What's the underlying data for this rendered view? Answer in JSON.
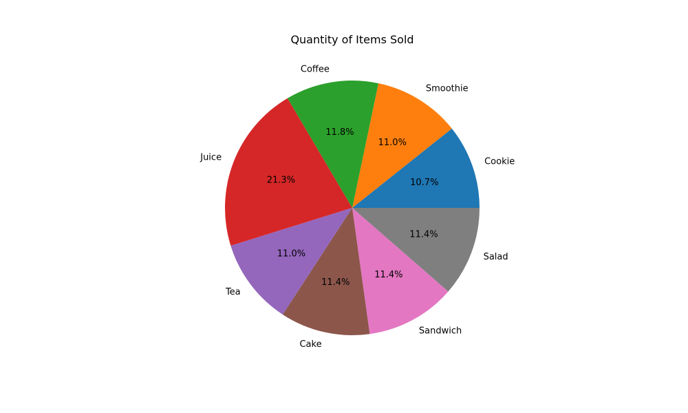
{
  "chart_data": {
    "type": "pie",
    "title": "Quantity of Items Sold",
    "start_angle_deg": 0,
    "direction": "counterclockwise",
    "slices": [
      {
        "label": "Cookie",
        "percent": 10.7,
        "pct_text": "10.7%",
        "color": "#1f77b4"
      },
      {
        "label": "Smoothie",
        "percent": 11.0,
        "pct_text": "11.0%",
        "color": "#ff7f0e"
      },
      {
        "label": "Coffee",
        "percent": 11.8,
        "pct_text": "11.8%",
        "color": "#2ca02c"
      },
      {
        "label": "Juice",
        "percent": 21.3,
        "pct_text": "21.3%",
        "color": "#d62728"
      },
      {
        "label": "Tea",
        "percent": 11.0,
        "pct_text": "11.0%",
        "color": "#9467bd"
      },
      {
        "label": "Cake",
        "percent": 11.4,
        "pct_text": "11.4%",
        "color": "#8c564b"
      },
      {
        "label": "Sandwich",
        "percent": 11.4,
        "pct_text": "11.4%",
        "color": "#e377c2"
      },
      {
        "label": "Salad",
        "percent": 11.4,
        "pct_text": "11.4%",
        "color": "#7f7f7f"
      }
    ]
  }
}
